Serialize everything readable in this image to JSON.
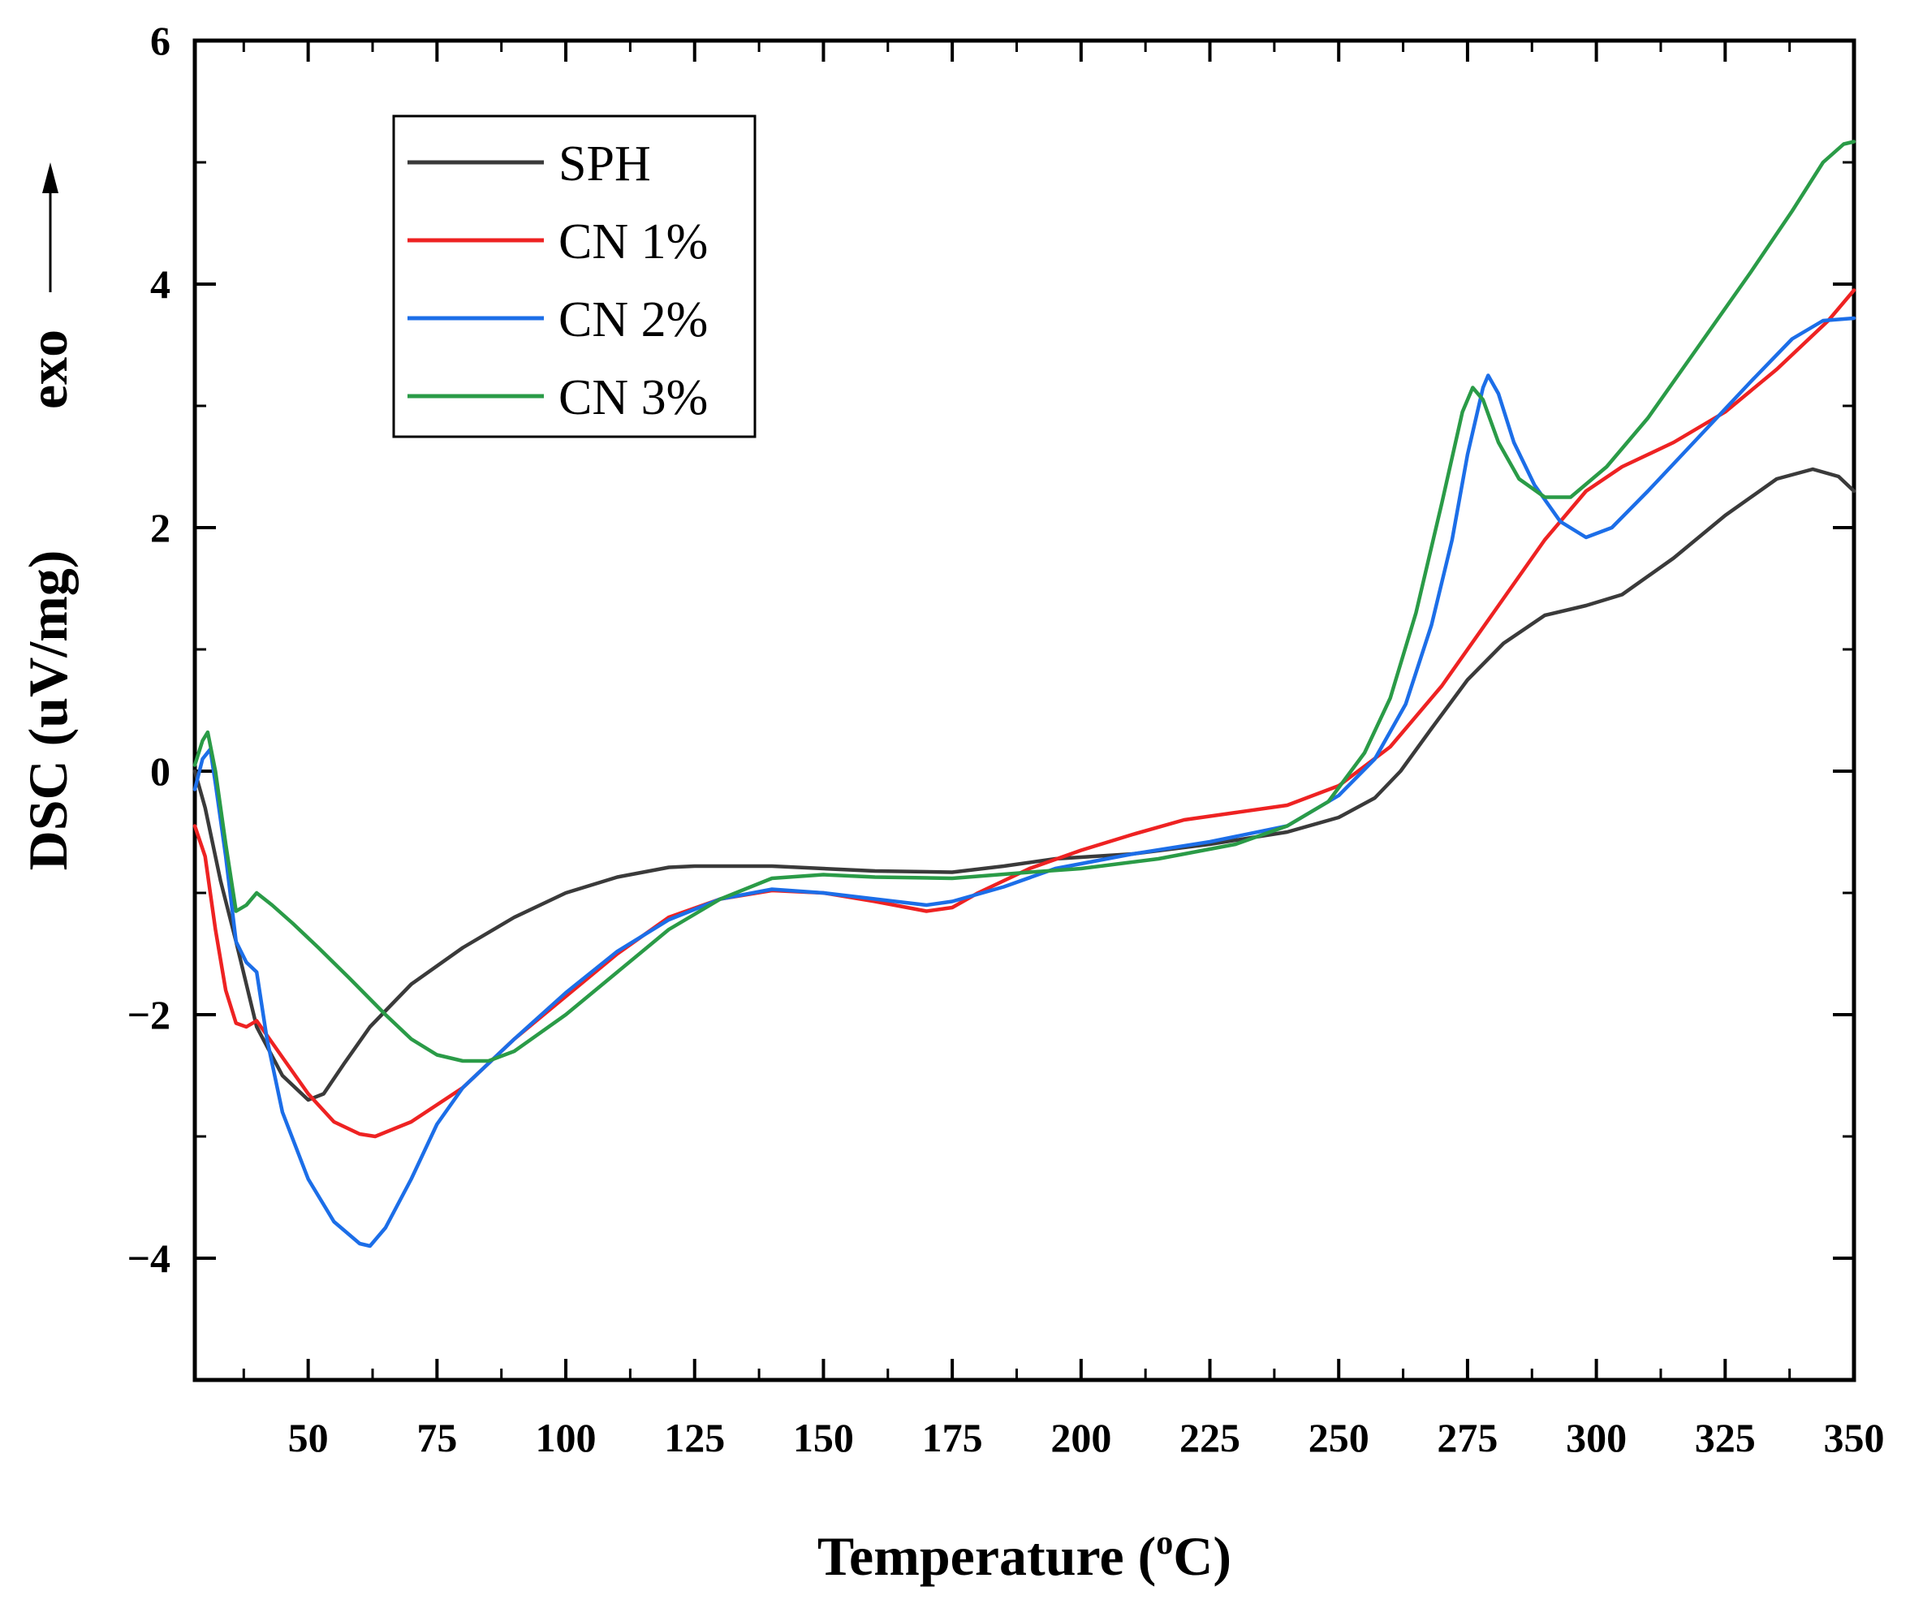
{
  "chart_data": {
    "type": "line",
    "title": "",
    "xlabel": "Temperature (",
    "xlabel_sup": "o",
    "xlabel_tail": "C)",
    "ylabel": "DSC (uV/mg)",
    "ylabel_extra": "exo",
    "xlim": [
      28,
      350
    ],
    "ylim": [
      -5,
      6
    ],
    "xticks": [
      50,
      75,
      100,
      125,
      150,
      175,
      200,
      225,
      250,
      275,
      300,
      325,
      350
    ],
    "xtick_labels": [
      "50",
      "75",
      "100",
      "125",
      "150",
      "175",
      "200",
      "225",
      "250",
      "275",
      "300",
      "325",
      "350"
    ],
    "yticks": [
      -4,
      -2,
      0,
      2,
      4,
      6
    ],
    "ytick_labels": [
      "−4",
      "−2",
      "0",
      "2",
      "4",
      "6"
    ],
    "legend_position": "top-left",
    "series": [
      {
        "name": "SPH",
        "color": "#3a3a3a",
        "points": [
          [
            28,
            0
          ],
          [
            30,
            -0.3
          ],
          [
            33,
            -0.9
          ],
          [
            36,
            -1.4
          ],
          [
            40,
            -2.1
          ],
          [
            45,
            -2.5
          ],
          [
            50,
            -2.7
          ],
          [
            53,
            -2.65
          ],
          [
            57,
            -2.4
          ],
          [
            62,
            -2.1
          ],
          [
            70,
            -1.75
          ],
          [
            80,
            -1.45
          ],
          [
            90,
            -1.2
          ],
          [
            100,
            -1.0
          ],
          [
            110,
            -0.87
          ],
          [
            120,
            -0.79
          ],
          [
            125,
            -0.78
          ],
          [
            140,
            -0.78
          ],
          [
            160,
            -0.82
          ],
          [
            175,
            -0.83
          ],
          [
            185,
            -0.78
          ],
          [
            195,
            -0.72
          ],
          [
            210,
            -0.68
          ],
          [
            225,
            -0.6
          ],
          [
            240,
            -0.5
          ],
          [
            250,
            -0.38
          ],
          [
            257,
            -0.22
          ],
          [
            262,
            0.0
          ],
          [
            268,
            0.35
          ],
          [
            275,
            0.75
          ],
          [
            282,
            1.05
          ],
          [
            290,
            1.28
          ],
          [
            298,
            1.36
          ],
          [
            305,
            1.45
          ],
          [
            315,
            1.75
          ],
          [
            325,
            2.1
          ],
          [
            335,
            2.4
          ],
          [
            342,
            2.48
          ],
          [
            347,
            2.42
          ],
          [
            350,
            2.3
          ]
        ]
      },
      {
        "name": "CN 1%",
        "color": "#ee2222",
        "points": [
          [
            28,
            -0.45
          ],
          [
            30,
            -0.7
          ],
          [
            32,
            -1.3
          ],
          [
            34,
            -1.8
          ],
          [
            36,
            -2.07
          ],
          [
            38,
            -2.1
          ],
          [
            40,
            -2.05
          ],
          [
            45,
            -2.35
          ],
          [
            50,
            -2.65
          ],
          [
            55,
            -2.88
          ],
          [
            60,
            -2.98
          ],
          [
            63,
            -3.0
          ],
          [
            70,
            -2.88
          ],
          [
            80,
            -2.6
          ],
          [
            90,
            -2.2
          ],
          [
            100,
            -1.85
          ],
          [
            110,
            -1.5
          ],
          [
            120,
            -1.2
          ],
          [
            130,
            -1.05
          ],
          [
            140,
            -0.98
          ],
          [
            150,
            -1.0
          ],
          [
            160,
            -1.07
          ],
          [
            170,
            -1.15
          ],
          [
            175,
            -1.12
          ],
          [
            180,
            -1.0
          ],
          [
            190,
            -0.8
          ],
          [
            200,
            -0.65
          ],
          [
            210,
            -0.52
          ],
          [
            220,
            -0.4
          ],
          [
            230,
            -0.34
          ],
          [
            240,
            -0.28
          ],
          [
            250,
            -0.12
          ],
          [
            260,
            0.2
          ],
          [
            270,
            0.7
          ],
          [
            280,
            1.3
          ],
          [
            290,
            1.9
          ],
          [
            298,
            2.3
          ],
          [
            305,
            2.5
          ],
          [
            315,
            2.7
          ],
          [
            325,
            2.95
          ],
          [
            335,
            3.3
          ],
          [
            345,
            3.7
          ],
          [
            350,
            3.95
          ]
        ]
      },
      {
        "name": "CN 2%",
        "color": "#1c6ee8",
        "points": [
          [
            28,
            -0.15
          ],
          [
            29.5,
            0.1
          ],
          [
            31,
            0.18
          ],
          [
            32,
            -0.1
          ],
          [
            34,
            -0.7
          ],
          [
            36,
            -1.4
          ],
          [
            38,
            -1.57
          ],
          [
            40,
            -1.65
          ],
          [
            42,
            -2.2
          ],
          [
            45,
            -2.8
          ],
          [
            50,
            -3.35
          ],
          [
            55,
            -3.7
          ],
          [
            60,
            -3.88
          ],
          [
            62,
            -3.9
          ],
          [
            65,
            -3.75
          ],
          [
            70,
            -3.35
          ],
          [
            75,
            -2.9
          ],
          [
            80,
            -2.6
          ],
          [
            90,
            -2.2
          ],
          [
            100,
            -1.82
          ],
          [
            110,
            -1.48
          ],
          [
            120,
            -1.22
          ],
          [
            130,
            -1.05
          ],
          [
            140,
            -0.97
          ],
          [
            150,
            -1.0
          ],
          [
            160,
            -1.05
          ],
          [
            170,
            -1.1
          ],
          [
            175,
            -1.07
          ],
          [
            185,
            -0.95
          ],
          [
            195,
            -0.8
          ],
          [
            210,
            -0.68
          ],
          [
            225,
            -0.58
          ],
          [
            240,
            -0.45
          ],
          [
            250,
            -0.2
          ],
          [
            257,
            0.1
          ],
          [
            263,
            0.55
          ],
          [
            268,
            1.2
          ],
          [
            272,
            1.9
          ],
          [
            275,
            2.6
          ],
          [
            278,
            3.15
          ],
          [
            279,
            3.25
          ],
          [
            281,
            3.1
          ],
          [
            284,
            2.7
          ],
          [
            288,
            2.35
          ],
          [
            293,
            2.05
          ],
          [
            298,
            1.92
          ],
          [
            303,
            2.0
          ],
          [
            310,
            2.3
          ],
          [
            320,
            2.75
          ],
          [
            330,
            3.2
          ],
          [
            338,
            3.55
          ],
          [
            344,
            3.7
          ],
          [
            350,
            3.72
          ]
        ]
      },
      {
        "name": "CN 3%",
        "color": "#2a9b47",
        "points": [
          [
            28,
            0.05
          ],
          [
            29.5,
            0.25
          ],
          [
            30.5,
            0.32
          ],
          [
            32,
            0.0
          ],
          [
            34,
            -0.6
          ],
          [
            36,
            -1.15
          ],
          [
            38,
            -1.1
          ],
          [
            40,
            -1.0
          ],
          [
            43,
            -1.1
          ],
          [
            47,
            -1.25
          ],
          [
            52,
            -1.45
          ],
          [
            58,
            -1.7
          ],
          [
            65,
            -2.0
          ],
          [
            70,
            -2.2
          ],
          [
            75,
            -2.33
          ],
          [
            80,
            -2.38
          ],
          [
            85,
            -2.38
          ],
          [
            90,
            -2.3
          ],
          [
            100,
            -2.0
          ],
          [
            110,
            -1.65
          ],
          [
            120,
            -1.3
          ],
          [
            130,
            -1.05
          ],
          [
            140,
            -0.88
          ],
          [
            150,
            -0.85
          ],
          [
            160,
            -0.87
          ],
          [
            175,
            -0.88
          ],
          [
            190,
            -0.83
          ],
          [
            200,
            -0.8
          ],
          [
            215,
            -0.72
          ],
          [
            230,
            -0.6
          ],
          [
            240,
            -0.45
          ],
          [
            248,
            -0.25
          ],
          [
            255,
            0.15
          ],
          [
            260,
            0.6
          ],
          [
            265,
            1.3
          ],
          [
            270,
            2.2
          ],
          [
            274,
            2.95
          ],
          [
            276,
            3.15
          ],
          [
            278,
            3.05
          ],
          [
            281,
            2.7
          ],
          [
            285,
            2.4
          ],
          [
            290,
            2.25
          ],
          [
            295,
            2.25
          ],
          [
            302,
            2.5
          ],
          [
            310,
            2.9
          ],
          [
            320,
            3.5
          ],
          [
            330,
            4.1
          ],
          [
            338,
            4.6
          ],
          [
            344,
            5.0
          ],
          [
            348,
            5.15
          ],
          [
            350,
            5.17
          ]
        ]
      }
    ]
  }
}
